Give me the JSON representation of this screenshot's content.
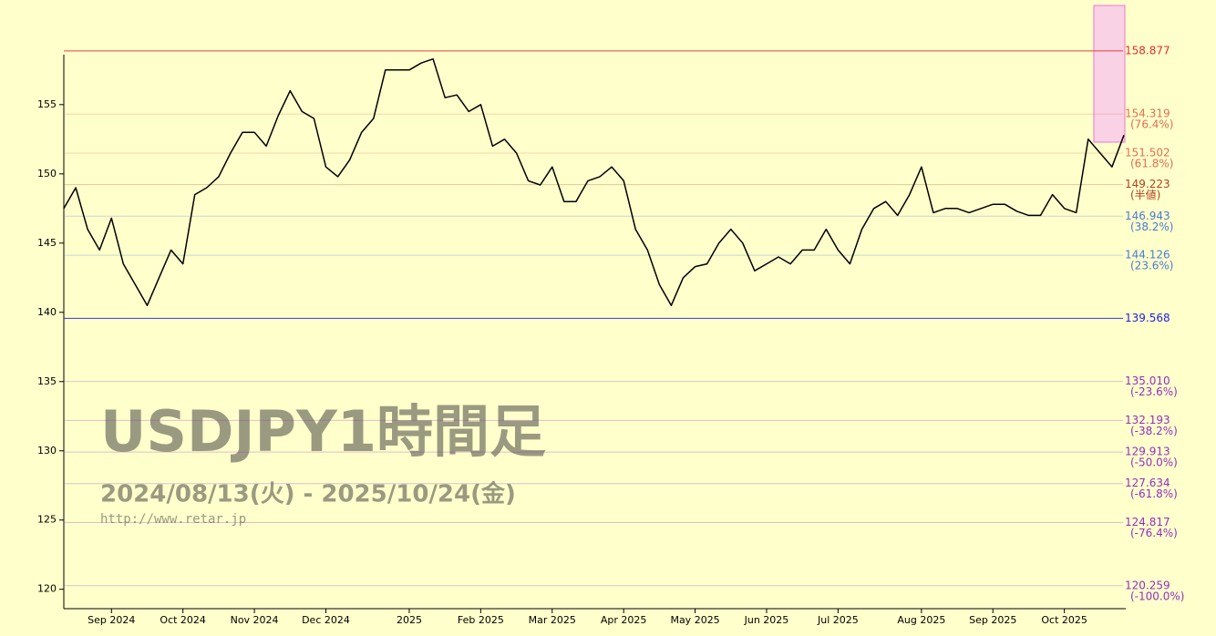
{
  "chart_data": {
    "type": "line",
    "title": "USDJPY1時間足",
    "subtitle": "2024/08/13(火) - 2025/10/24(金)",
    "source": "http://www.retar.jp",
    "color": "#000000",
    "categories": [
      null,
      null,
      null,
      null,
      "Sep 2024",
      null,
      null,
      null,
      null,
      null,
      "Oct 2024",
      null,
      null,
      null,
      null,
      null,
      "Nov 2024",
      null,
      null,
      null,
      null,
      null,
      "Dec 2024",
      null,
      null,
      null,
      null,
      null,
      null,
      "2025",
      null,
      null,
      null,
      null,
      null,
      "Feb 2025",
      null,
      null,
      null,
      null,
      null,
      "Mar 2025",
      null,
      null,
      null,
      null,
      null,
      "Apr 2025",
      null,
      null,
      null,
      null,
      null,
      "May 2025",
      null,
      null,
      null,
      null,
      null,
      "Jun 2025",
      null,
      null,
      null,
      null,
      null,
      "Jul 2025",
      null,
      null,
      null,
      null,
      null,
      null,
      "Aug 2025",
      null,
      null,
      null,
      null,
      null,
      "Sep 2025",
      null,
      null,
      null,
      null,
      null,
      "Oct 2025",
      null,
      null,
      null,
      null,
      null
    ],
    "values": [
      147.5,
      149,
      146,
      144.5,
      146.8,
      143.5,
      142,
      140.5,
      142.5,
      144.5,
      143.5,
      148.5,
      149,
      149.8,
      151.5,
      153,
      153,
      152,
      154.2,
      156,
      154.5,
      154,
      150.5,
      149.8,
      151,
      153,
      154,
      157.5,
      157.5,
      157.5,
      158,
      158.3,
      155.5,
      155.7,
      154.5,
      155,
      152,
      152.5,
      151.5,
      149.5,
      149.2,
      150.5,
      148,
      148,
      149.5,
      149.8,
      150.5,
      149.5,
      146,
      144.5,
      142,
      140.5,
      142.5,
      143.3,
      143.5,
      145,
      146,
      145,
      143,
      143.5,
      144,
      143.5,
      144.5,
      144.5,
      146,
      144.5,
      143.5,
      146,
      147.5,
      148,
      147,
      148.5,
      150.5,
      147.2,
      147.5,
      147.5,
      147.2,
      147.5,
      147.8,
      147.8,
      147.3,
      147,
      147,
      148.5,
      147.5,
      147.2,
      152.5,
      151.5,
      150.5,
      152.8
    ],
    "ylim": [
      118.6,
      159.2
    ],
    "yticks": [
      120,
      125,
      130,
      135,
      140,
      145,
      150,
      155
    ],
    "levels": [
      {
        "value": 158.877,
        "label": "158.877",
        "color": "#e03030"
      },
      {
        "value": 154.319,
        "label": "154.319",
        "note": "(76.4%)",
        "color": "#e07050"
      },
      {
        "value": 151.502,
        "label": "151.502",
        "note": "(61.8%)",
        "color": "#e07050"
      },
      {
        "value": 149.223,
        "label": "149.223",
        "note": "(半値)",
        "color": "#b04020"
      },
      {
        "value": 146.943,
        "label": "146.943",
        "note": "(38.2%)",
        "color": "#4a7ad0"
      },
      {
        "value": 144.126,
        "label": "144.126",
        "note": "(23.6%)",
        "color": "#4a7ad0"
      },
      {
        "value": 139.568,
        "label": "139.568",
        "color": "#2020e0"
      },
      {
        "value": 135.01,
        "label": "135.010",
        "note": "(-23.6%)",
        "color": "#9030c0"
      },
      {
        "value": 132.193,
        "label": "132.193",
        "note": "(-38.2%)",
        "color": "#9030c0"
      },
      {
        "value": 129.913,
        "label": "129.913",
        "note": "(-50.0%)",
        "color": "#9030c0"
      },
      {
        "value": 127.634,
        "label": "127.634",
        "note": "(-61.8%)",
        "color": "#9030c0"
      },
      {
        "value": 124.817,
        "label": "124.817",
        "note": "(-76.4%)",
        "color": "#9030c0"
      },
      {
        "value": 120.259,
        "label": "120.259",
        "note": "(-100.0%)",
        "color": "#9030c0"
      }
    ]
  }
}
